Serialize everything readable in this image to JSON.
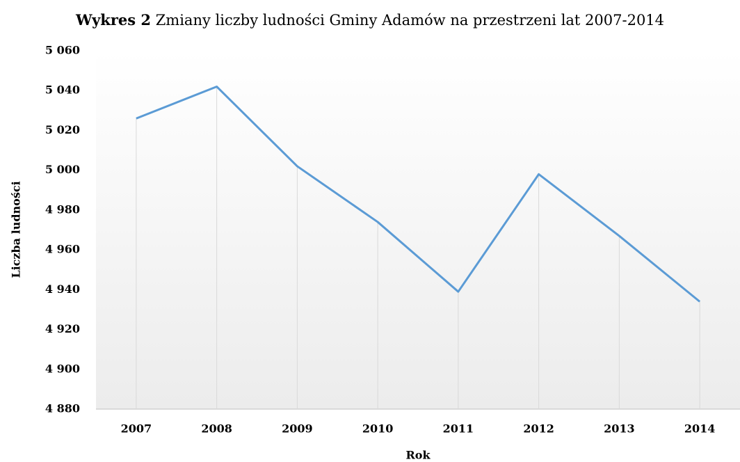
{
  "chart_data": {
    "type": "line",
    "title_label": "Wykres 2",
    "title": "Zmiany liczby ludności Gminy Adamów na przestrzeni lat 2007-2014",
    "x_label": "Rok",
    "y_label": "Liczba ludności",
    "categories": [
      "2007",
      "2008",
      "2009",
      "2010",
      "2011",
      "2012",
      "2013",
      "2014"
    ],
    "series": [
      {
        "name": "Liczba ludności",
        "color": "#5b9bd5",
        "values": [
          5026,
          5042,
          5002,
          4974,
          4939,
          4998,
          4967,
          4934
        ]
      }
    ],
    "ylim": [
      4880,
      5060
    ],
    "yticks": [
      {
        "value": 4880,
        "label": "4 880"
      },
      {
        "value": 4900,
        "label": "4 900"
      },
      {
        "value": 4920,
        "label": "4 920"
      },
      {
        "value": 4940,
        "label": "4 940"
      },
      {
        "value": 4960,
        "label": "4 960"
      },
      {
        "value": 4980,
        "label": "4 980"
      },
      {
        "value": 5000,
        "label": "5 000"
      },
      {
        "value": 5020,
        "label": "5 020"
      },
      {
        "value": 5040,
        "label": "5 040"
      },
      {
        "value": 5060,
        "label": "5 060"
      }
    ],
    "drop_lines": true
  }
}
